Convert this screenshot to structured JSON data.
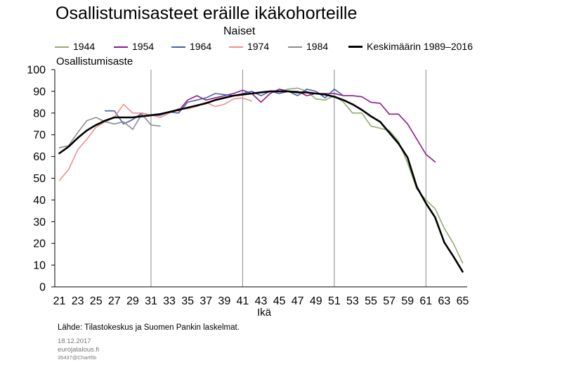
{
  "chart_data": {
    "type": "line",
    "title": "Osallistumisasteet eräille ikäkohorteille",
    "subtitle": "Naiset",
    "ylabel": "Osallistumisaste",
    "xlabel": "Ikä",
    "xlim": [
      21,
      65
    ],
    "ylim": [
      0,
      100
    ],
    "x_ticks": [
      21,
      23,
      25,
      27,
      29,
      31,
      33,
      35,
      37,
      39,
      41,
      43,
      45,
      47,
      49,
      51,
      53,
      55,
      57,
      59,
      61,
      63,
      65
    ],
    "y_ticks": [
      0,
      10,
      20,
      30,
      40,
      50,
      60,
      70,
      80,
      90,
      100
    ],
    "grid": "vertical",
    "legend_position": "top",
    "series": [
      {
        "name": "1944",
        "color": "#8fac6f",
        "x": [
          44,
          45,
          46,
          47,
          48,
          49,
          50,
          51,
          52,
          53,
          54,
          55,
          56,
          57,
          58,
          59,
          60,
          61,
          62,
          63,
          64,
          65
        ],
        "y": [
          90,
          90,
          91,
          91.5,
          90,
          86.5,
          86,
          88,
          85,
          80,
          80,
          74,
          73,
          72,
          67,
          57,
          45,
          40,
          36,
          27,
          20,
          11
        ]
      },
      {
        "name": "1954",
        "color": "#8b1a89",
        "x": [
          34,
          35,
          36,
          37,
          38,
          39,
          40,
          41,
          42,
          43,
          44,
          45,
          46,
          47,
          48,
          49,
          50,
          51,
          52,
          53,
          54,
          55,
          56,
          57,
          58,
          59,
          60,
          61,
          62
        ],
        "y": [
          81,
          86,
          88,
          86,
          87,
          88,
          89,
          90.5,
          89,
          85,
          89,
          91,
          90,
          90,
          88,
          89,
          89,
          89,
          88,
          88,
          87.5,
          85,
          84.5,
          79.5,
          79.5,
          75,
          68,
          61,
          57.5
        ]
      },
      {
        "name": "1964",
        "color": "#4a5ea8",
        "x": [
          26,
          27,
          28,
          29,
          30,
          31,
          32,
          33,
          34,
          35,
          36,
          37,
          38,
          39,
          40,
          41,
          42,
          43,
          44,
          45,
          46,
          47,
          48,
          49,
          50,
          51,
          52
        ],
        "y": [
          81,
          81,
          75,
          77,
          80,
          79,
          79,
          80.5,
          80,
          85,
          86,
          87,
          89,
          88.5,
          88,
          89,
          90,
          88,
          90,
          89,
          90,
          88,
          91,
          90,
          87,
          91,
          88
        ]
      },
      {
        "name": "1974",
        "color": "#f08e8e",
        "x": [
          21,
          22,
          23,
          24,
          25,
          26,
          27,
          28,
          29,
          30,
          31,
          32,
          33,
          34,
          35,
          36,
          37,
          38,
          39,
          40,
          41,
          42
        ],
        "y": [
          49,
          54,
          63,
          68,
          73.5,
          76,
          78,
          84,
          80,
          80,
          79,
          78,
          80,
          82,
          82,
          83,
          85,
          83,
          84,
          86.5,
          87,
          85.5
        ]
      },
      {
        "name": "1984",
        "color": "#8c8c8c",
        "x": [
          21,
          22,
          23,
          24,
          25,
          26,
          27,
          28,
          29,
          30,
          31,
          32
        ],
        "y": [
          64,
          65,
          71,
          76.5,
          78,
          76,
          75,
          76,
          72.5,
          79.5,
          74.5,
          74
        ]
      },
      {
        "name": "Keskimäärin 1989–2016",
        "color": "#000000",
        "x": [
          21,
          22,
          23,
          24,
          25,
          26,
          27,
          28,
          29,
          30,
          31,
          32,
          33,
          34,
          35,
          36,
          37,
          38,
          39,
          40,
          41,
          42,
          43,
          44,
          45,
          46,
          47,
          48,
          49,
          50,
          51,
          52,
          53,
          54,
          55,
          56,
          57,
          58,
          59,
          60,
          61,
          62,
          63,
          64,
          65
        ],
        "y": [
          61.5,
          64.5,
          68.5,
          72,
          74.5,
          76.5,
          78,
          78,
          78,
          78.5,
          79,
          79.5,
          80.5,
          81.5,
          82.5,
          83.5,
          84.5,
          86,
          87,
          88,
          88.5,
          89,
          89.5,
          90,
          90,
          90,
          89.5,
          89.5,
          89,
          88.5,
          87.5,
          86,
          84,
          81.5,
          78.5,
          76,
          71,
          66,
          59.5,
          46,
          38.5,
          32,
          20.5,
          14,
          7
        ]
      }
    ]
  },
  "source_text": "Lähde: Tilastokeskus ja Suomen Pankin laskelmat.",
  "footer": {
    "date": "18.12.2017",
    "site": "eurojatalous.fi",
    "code": "35437@Chart5b"
  }
}
